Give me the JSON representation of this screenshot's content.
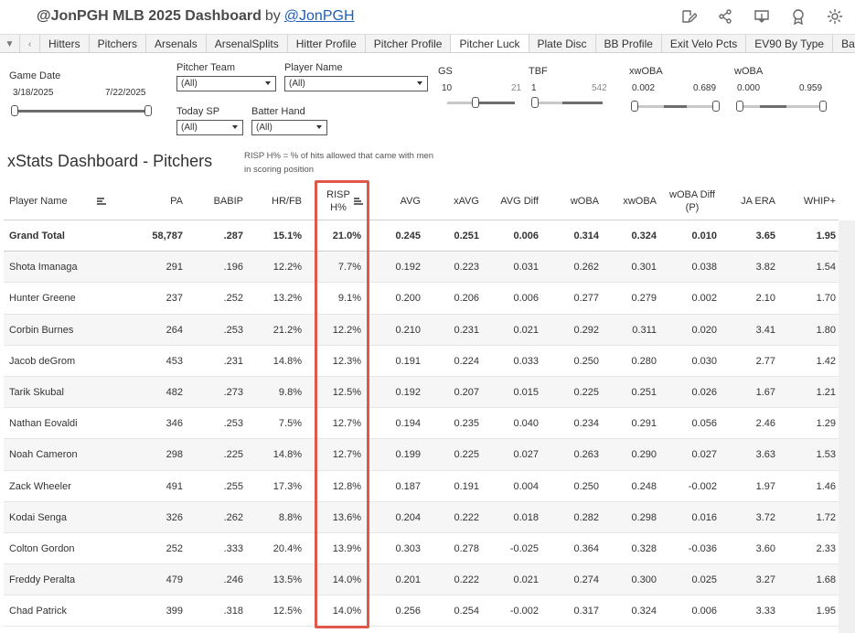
{
  "header": {
    "title": "@JonPGH MLB 2025 Dashboard",
    "by": "by",
    "author_link": "@JonPGH",
    "icons": [
      "edit-icon",
      "share-icon",
      "download-icon",
      "badge-icon",
      "settings-icon"
    ]
  },
  "tabs": {
    "prev_arrows": [
      "▼",
      "‹"
    ],
    "items": [
      "Hitters",
      "Pitchers",
      "Arsenals",
      "ArsenalSplits",
      "Hitter Profile",
      "Pitcher Profile",
      "Pitcher Luck",
      "Plate Disc",
      "BB Profile",
      "Exit Velo Pcts",
      "EV90 By Type",
      "Ba"
    ],
    "active": "Pitcher Luck"
  },
  "filters": {
    "game_date": {
      "label": "Game Date",
      "start": "3/18/2025",
      "end": "7/22/2025"
    },
    "pitcher_team": {
      "label": "Pitcher Team",
      "value": "(All)"
    },
    "player_name": {
      "label": "Player Name",
      "value": "(All)"
    },
    "today_sp": {
      "label": "Today SP",
      "value": "(All)"
    },
    "batter_hand": {
      "label": "Batter Hand",
      "value": "(All)"
    },
    "gs": {
      "label": "GS",
      "min": "10",
      "max": "21"
    },
    "tbf": {
      "label": "TBF",
      "min": "1",
      "max": "542"
    },
    "xwoba": {
      "label": "xwOBA",
      "min": "0.002",
      "max": "0.689"
    },
    "woba": {
      "label": "wOBA",
      "min": "0.000",
      "max": "0.959"
    }
  },
  "dashboard": {
    "title": "xStats Dashboard - Pitchers",
    "note": "RISP H% = % of hits allowed that came with men in scoring position"
  },
  "table": {
    "columns": [
      "Player Name",
      "PA",
      "BABIP",
      "HR/FB",
      "RISP H%",
      "AVG",
      "xAVG",
      "AVG Diff",
      "wOBA",
      "xwOBA",
      "wOBA Diff (P)",
      "JA ERA",
      "WHIP+"
    ],
    "total": [
      "Grand Total",
      "58,787",
      ".287",
      "15.1%",
      "21.0%",
      "0.245",
      "0.251",
      "0.006",
      "0.314",
      "0.324",
      "0.010",
      "3.65",
      "1.95"
    ],
    "rows": [
      [
        "Shota Imanaga",
        "291",
        ".196",
        "12.2%",
        "7.7%",
        "0.192",
        "0.223",
        "0.031",
        "0.262",
        "0.301",
        "0.038",
        "3.82",
        "1.54"
      ],
      [
        "Hunter Greene",
        "237",
        ".252",
        "13.2%",
        "9.1%",
        "0.200",
        "0.206",
        "0.006",
        "0.277",
        "0.279",
        "0.002",
        "2.10",
        "1.70"
      ],
      [
        "Corbin Burnes",
        "264",
        ".253",
        "21.2%",
        "12.2%",
        "0.210",
        "0.231",
        "0.021",
        "0.292",
        "0.311",
        "0.020",
        "3.41",
        "1.80"
      ],
      [
        "Jacob deGrom",
        "453",
        ".231",
        "14.8%",
        "12.3%",
        "0.191",
        "0.224",
        "0.033",
        "0.250",
        "0.280",
        "0.030",
        "2.77",
        "1.42"
      ],
      [
        "Tarik Skubal",
        "482",
        ".273",
        "9.8%",
        "12.5%",
        "0.192",
        "0.207",
        "0.015",
        "0.225",
        "0.251",
        "0.026",
        "1.67",
        "1.21"
      ],
      [
        "Nathan Eovaldi",
        "346",
        ".253",
        "7.5%",
        "12.7%",
        "0.194",
        "0.235",
        "0.040",
        "0.234",
        "0.291",
        "0.056",
        "2.46",
        "1.29"
      ],
      [
        "Noah Cameron",
        "298",
        ".225",
        "14.8%",
        "12.7%",
        "0.199",
        "0.225",
        "0.027",
        "0.263",
        "0.290",
        "0.027",
        "3.63",
        "1.53"
      ],
      [
        "Zack Wheeler",
        "491",
        ".255",
        "17.3%",
        "12.8%",
        "0.187",
        "0.191",
        "0.004",
        "0.250",
        "0.248",
        "-0.002",
        "1.97",
        "1.46"
      ],
      [
        "Kodai Senga",
        "326",
        ".262",
        "8.8%",
        "13.6%",
        "0.204",
        "0.222",
        "0.018",
        "0.282",
        "0.298",
        "0.016",
        "3.72",
        "1.72"
      ],
      [
        "Colton Gordon",
        "252",
        ".333",
        "20.4%",
        "13.9%",
        "0.303",
        "0.278",
        "-0.025",
        "0.364",
        "0.328",
        "-0.036",
        "3.60",
        "2.33"
      ],
      [
        "Freddy Peralta",
        "479",
        ".246",
        "13.5%",
        "14.0%",
        "0.201",
        "0.222",
        "0.021",
        "0.274",
        "0.300",
        "0.025",
        "3.27",
        "1.68"
      ],
      [
        "Chad Patrick",
        "399",
        ".318",
        "12.5%",
        "14.0%",
        "0.256",
        "0.254",
        "-0.002",
        "0.317",
        "0.324",
        "0.006",
        "3.33",
        "1.95"
      ]
    ],
    "highlight_color": "#e0584a"
  }
}
